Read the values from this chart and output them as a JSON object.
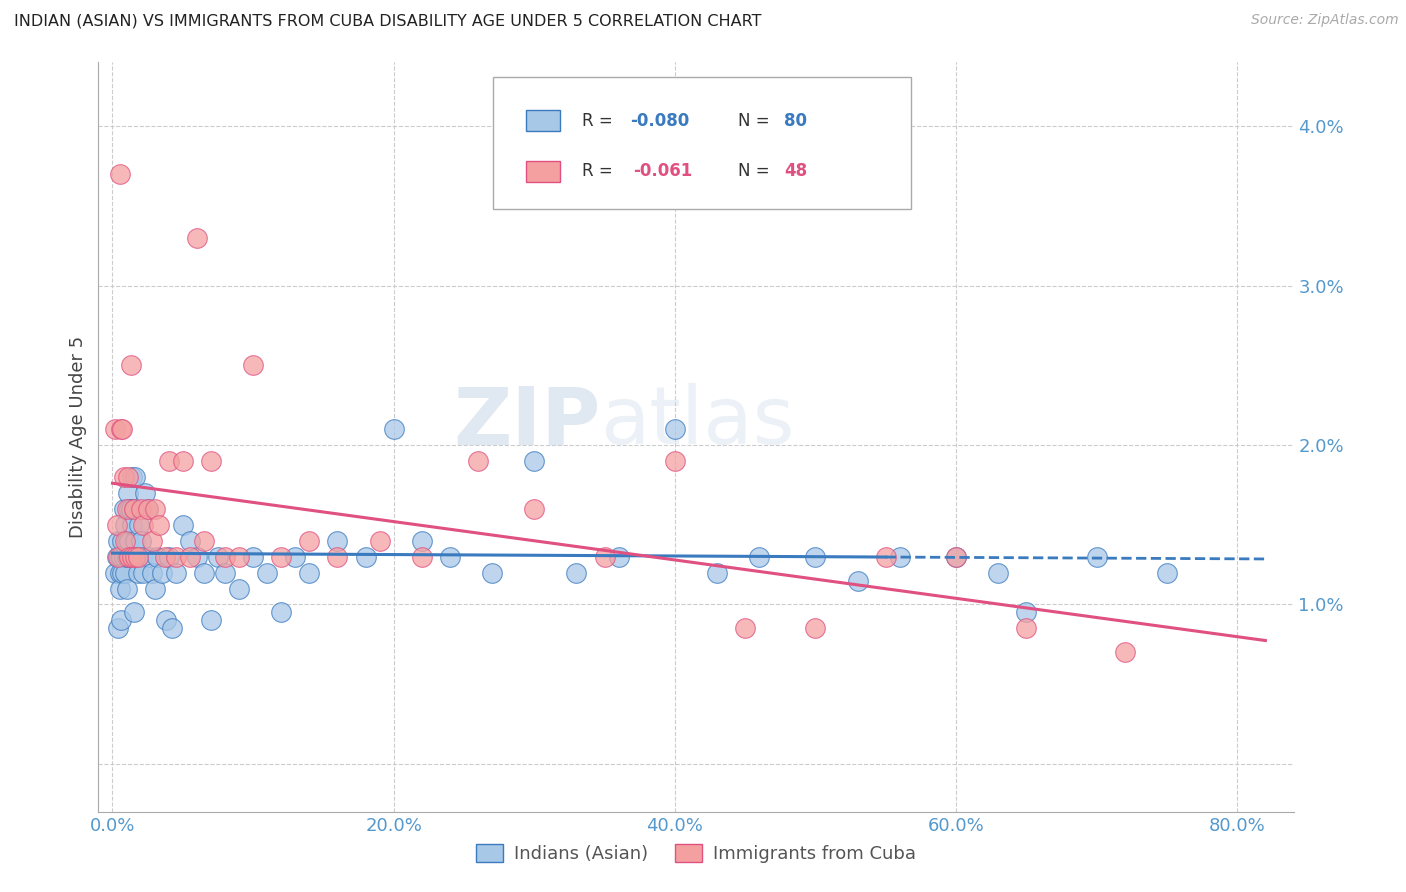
{
  "title": "INDIAN (ASIAN) VS IMMIGRANTS FROM CUBA DISABILITY AGE UNDER 5 CORRELATION CHART",
  "source": "Source: ZipAtlas.com",
  "ylabel": "Disability Age Under 5",
  "yticks": [
    0.0,
    0.01,
    0.02,
    0.03,
    0.04
  ],
  "ytick_labels": [
    "",
    "1.0%",
    "2.0%",
    "3.0%",
    "4.0%"
  ],
  "xticks": [
    0.0,
    0.2,
    0.4,
    0.6,
    0.8
  ],
  "xtick_labels": [
    "0.0%",
    "20.0%",
    "40.0%",
    "60.0%",
    "80.0%"
  ],
  "xlim": [
    -0.01,
    0.84
  ],
  "ylim": [
    -0.003,
    0.044
  ],
  "legend_R_blue": "R = -0.080",
  "legend_N_blue": "N = 80",
  "legend_R_pink": "R =  -0.061",
  "legend_N_pink": "N = 48",
  "blue_color": "#a8c8e8",
  "pink_color": "#f4a0a0",
  "blue_line_color": "#3a7abf",
  "pink_line_color": "#e05080",
  "title_color": "#222222",
  "tick_color": "#5599cc",
  "watermark_zip": "ZIP",
  "watermark_atlas": "atlas",
  "legend_blue_label": "Indians (Asian)",
  "legend_pink_label": "Immigrants from Cuba",
  "blue_scatter_x": [
    0.002,
    0.003,
    0.004,
    0.004,
    0.005,
    0.005,
    0.005,
    0.006,
    0.006,
    0.007,
    0.007,
    0.008,
    0.008,
    0.009,
    0.009,
    0.01,
    0.01,
    0.01,
    0.011,
    0.011,
    0.012,
    0.012,
    0.013,
    0.013,
    0.014,
    0.014,
    0.015,
    0.015,
    0.016,
    0.016,
    0.017,
    0.018,
    0.019,
    0.02,
    0.021,
    0.022,
    0.023,
    0.025,
    0.026,
    0.028,
    0.03,
    0.032,
    0.035,
    0.038,
    0.04,
    0.042,
    0.045,
    0.05,
    0.055,
    0.06,
    0.065,
    0.07,
    0.075,
    0.08,
    0.09,
    0.1,
    0.11,
    0.12,
    0.13,
    0.14,
    0.16,
    0.18,
    0.2,
    0.22,
    0.24,
    0.27,
    0.3,
    0.33,
    0.36,
    0.4,
    0.43,
    0.46,
    0.5,
    0.53,
    0.56,
    0.6,
    0.63,
    0.65,
    0.7,
    0.75
  ],
  "blue_scatter_y": [
    0.012,
    0.013,
    0.0085,
    0.014,
    0.012,
    0.011,
    0.013,
    0.013,
    0.009,
    0.014,
    0.012,
    0.016,
    0.013,
    0.015,
    0.012,
    0.014,
    0.013,
    0.011,
    0.017,
    0.013,
    0.016,
    0.014,
    0.016,
    0.013,
    0.018,
    0.015,
    0.0095,
    0.016,
    0.018,
    0.014,
    0.013,
    0.012,
    0.015,
    0.014,
    0.013,
    0.012,
    0.017,
    0.016,
    0.013,
    0.012,
    0.011,
    0.013,
    0.012,
    0.009,
    0.013,
    0.0085,
    0.012,
    0.015,
    0.014,
    0.013,
    0.012,
    0.009,
    0.013,
    0.012,
    0.011,
    0.013,
    0.012,
    0.0095,
    0.013,
    0.012,
    0.014,
    0.013,
    0.021,
    0.014,
    0.013,
    0.012,
    0.019,
    0.012,
    0.013,
    0.021,
    0.012,
    0.013,
    0.013,
    0.0115,
    0.013,
    0.013,
    0.012,
    0.0095,
    0.013,
    0.012
  ],
  "pink_scatter_x": [
    0.002,
    0.003,
    0.004,
    0.005,
    0.006,
    0.007,
    0.008,
    0.009,
    0.01,
    0.011,
    0.012,
    0.013,
    0.014,
    0.015,
    0.016,
    0.018,
    0.02,
    0.022,
    0.025,
    0.028,
    0.03,
    0.033,
    0.037,
    0.04,
    0.045,
    0.05,
    0.055,
    0.06,
    0.065,
    0.07,
    0.08,
    0.09,
    0.1,
    0.12,
    0.14,
    0.16,
    0.19,
    0.22,
    0.26,
    0.3,
    0.35,
    0.4,
    0.45,
    0.5,
    0.55,
    0.6,
    0.65,
    0.72
  ],
  "pink_scatter_y": [
    0.021,
    0.015,
    0.013,
    0.037,
    0.021,
    0.021,
    0.018,
    0.014,
    0.016,
    0.018,
    0.013,
    0.025,
    0.013,
    0.016,
    0.013,
    0.013,
    0.016,
    0.015,
    0.016,
    0.014,
    0.016,
    0.015,
    0.013,
    0.019,
    0.013,
    0.019,
    0.013,
    0.033,
    0.014,
    0.019,
    0.013,
    0.013,
    0.025,
    0.013,
    0.014,
    0.013,
    0.014,
    0.013,
    0.019,
    0.016,
    0.013,
    0.019,
    0.0085,
    0.0085,
    0.013,
    0.013,
    0.0085,
    0.007
  ]
}
